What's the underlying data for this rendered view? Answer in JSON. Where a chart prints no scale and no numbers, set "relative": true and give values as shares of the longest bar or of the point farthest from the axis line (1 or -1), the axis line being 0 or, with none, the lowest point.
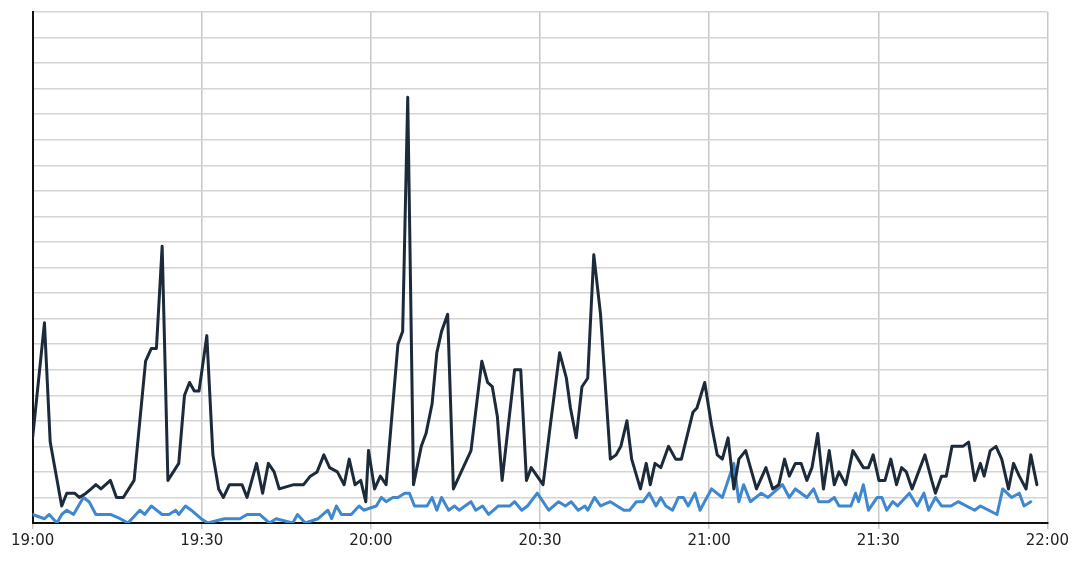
{
  "chart_data": {
    "type": "line",
    "relative": true,
    "xlim": [
      19,
      22
    ],
    "xticks": [
      {
        "value": 19,
        "label": "19:00"
      },
      {
        "value": 19.5,
        "label": "19:30"
      },
      {
        "value": 20,
        "label": "20:00"
      },
      {
        "value": 20.5,
        "label": "20:30"
      },
      {
        "value": 21,
        "label": "21:00"
      },
      {
        "value": 21.5,
        "label": "21:30"
      },
      {
        "value": 22,
        "label": "22:00"
      }
    ],
    "grid": true,
    "legend": false,
    "marker": "none",
    "line_style": "solid",
    "series": [
      {
        "color": "#1c2a3a",
        "x": [
          19.0,
          19.035,
          19.052,
          19.086,
          19.101,
          19.124,
          19.138,
          19.158,
          19.173,
          19.187,
          19.202,
          19.23,
          19.248,
          19.268,
          19.3,
          19.334,
          19.351,
          19.366,
          19.383,
          19.4,
          19.432,
          19.449,
          19.464,
          19.478,
          19.492,
          19.515,
          19.533,
          19.55,
          19.564,
          19.582,
          19.619,
          19.634,
          19.662,
          19.68,
          19.697,
          19.714,
          19.729,
          19.772,
          19.801,
          19.821,
          19.841,
          19.861,
          19.878,
          19.901,
          19.921,
          19.936,
          19.953,
          19.97,
          19.985,
          19.993,
          20.011,
          20.028,
          20.045,
          20.08,
          20.094,
          20.109,
          20.126,
          20.149,
          20.163,
          20.181,
          20.195,
          20.209,
          20.227,
          20.244,
          20.267,
          20.296,
          20.328,
          20.345,
          20.359,
          20.374,
          20.388,
          20.425,
          20.443,
          20.46,
          20.474,
          20.509,
          20.529,
          20.558,
          20.578,
          20.59,
          20.607,
          20.624,
          20.641,
          20.659,
          20.679,
          20.708,
          20.725,
          20.739,
          20.757,
          20.771,
          20.797,
          20.814,
          20.826,
          20.84,
          20.857,
          20.88,
          20.901,
          20.918,
          20.952,
          20.964,
          20.987,
          21.007,
          21.024,
          21.039,
          21.056,
          21.073,
          21.088,
          21.108,
          21.14,
          21.168,
          21.188,
          21.206,
          21.223,
          21.237,
          21.255,
          21.272,
          21.289,
          21.304,
          21.321,
          21.338,
          21.355,
          21.37,
          21.384,
          21.404,
          21.425,
          21.456,
          21.471,
          21.485,
          21.502,
          21.52,
          21.537,
          21.554,
          21.569,
          21.583,
          21.6,
          21.638,
          21.658,
          21.669,
          21.687,
          21.701,
          21.718,
          21.75,
          21.767,
          21.785,
          21.802,
          21.813,
          21.831,
          21.848,
          21.865,
          21.885,
          21.9,
          21.917,
          21.937,
          21.951,
          21.969
        ],
        "values": [
          0.2,
          0.47,
          0.19,
          0.04,
          0.07,
          0.07,
          0.06,
          0.07,
          0.08,
          0.09,
          0.08,
          0.1,
          0.06,
          0.06,
          0.1,
          0.38,
          0.41,
          0.41,
          0.65,
          0.1,
          0.14,
          0.3,
          0.33,
          0.31,
          0.31,
          0.44,
          0.16,
          0.08,
          0.06,
          0.09,
          0.09,
          0.06,
          0.14,
          0.07,
          0.14,
          0.12,
          0.08,
          0.09,
          0.09,
          0.11,
          0.12,
          0.16,
          0.13,
          0.12,
          0.09,
          0.15,
          0.09,
          0.1,
          0.05,
          0.17,
          0.08,
          0.11,
          0.09,
          0.42,
          0.45,
          1.0,
          0.09,
          0.18,
          0.21,
          0.28,
          0.4,
          0.45,
          0.49,
          0.08,
          0.12,
          0.17,
          0.38,
          0.33,
          0.32,
          0.25,
          0.1,
          0.36,
          0.36,
          0.1,
          0.13,
          0.09,
          0.22,
          0.4,
          0.34,
          0.27,
          0.2,
          0.32,
          0.34,
          0.63,
          0.49,
          0.15,
          0.16,
          0.18,
          0.24,
          0.15,
          0.08,
          0.14,
          0.09,
          0.14,
          0.13,
          0.18,
          0.15,
          0.15,
          0.26,
          0.27,
          0.33,
          0.23,
          0.16,
          0.15,
          0.2,
          0.08,
          0.15,
          0.17,
          0.08,
          0.13,
          0.08,
          0.09,
          0.15,
          0.11,
          0.14,
          0.14,
          0.1,
          0.13,
          0.21,
          0.08,
          0.17,
          0.09,
          0.12,
          0.09,
          0.17,
          0.13,
          0.13,
          0.16,
          0.1,
          0.1,
          0.15,
          0.09,
          0.13,
          0.12,
          0.08,
          0.16,
          0.1,
          0.07,
          0.11,
          0.11,
          0.18,
          0.18,
          0.19,
          0.1,
          0.14,
          0.11,
          0.17,
          0.18,
          0.15,
          0.08,
          0.14,
          0.11,
          0.08,
          0.16,
          0.09
        ]
      },
      {
        "color": "#3f88d0",
        "x": [
          19.0,
          19.035,
          19.049,
          19.072,
          19.086,
          19.101,
          19.121,
          19.15,
          19.167,
          19.187,
          19.207,
          19.23,
          19.259,
          19.282,
          19.317,
          19.331,
          19.351,
          19.383,
          19.403,
          19.423,
          19.432,
          19.452,
          19.469,
          19.498,
          19.518,
          19.567,
          19.613,
          19.634,
          19.654,
          19.671,
          19.7,
          19.72,
          19.769,
          19.783,
          19.806,
          19.844,
          19.873,
          19.884,
          19.898,
          19.913,
          19.942,
          19.965,
          19.979,
          20.016,
          20.031,
          20.045,
          20.065,
          20.08,
          20.1,
          20.114,
          20.129,
          20.152,
          20.166,
          20.181,
          20.195,
          20.209,
          20.23,
          20.247,
          20.261,
          20.296,
          20.31,
          20.33,
          20.348,
          20.377,
          20.391,
          20.411,
          20.425,
          20.446,
          20.463,
          20.492,
          20.526,
          20.555,
          20.575,
          20.592,
          20.613,
          20.633,
          20.641,
          20.661,
          20.679,
          20.708,
          20.748,
          20.765,
          20.785,
          20.805,
          20.823,
          20.843,
          20.857,
          20.872,
          20.892,
          20.909,
          20.924,
          20.938,
          20.958,
          20.973,
          21.007,
          21.039,
          21.073,
          21.088,
          21.102,
          21.122,
          21.154,
          21.174,
          21.217,
          21.237,
          21.255,
          21.289,
          21.309,
          21.324,
          21.353,
          21.37,
          21.384,
          21.419,
          21.433,
          21.442,
          21.456,
          21.471,
          21.497,
          21.511,
          21.525,
          21.543,
          21.557,
          21.592,
          21.615,
          21.635,
          21.649,
          21.669,
          21.687,
          21.715,
          21.736,
          21.785,
          21.802,
          21.851,
          21.868,
          21.894,
          21.917,
          21.931,
          21.951
        ],
        "values": [
          0.02,
          0.01,
          0.02,
          0.0,
          0.02,
          0.03,
          0.02,
          0.06,
          0.05,
          0.02,
          0.02,
          0.02,
          0.01,
          0.0,
          0.03,
          0.02,
          0.04,
          0.02,
          0.02,
          0.03,
          0.02,
          0.04,
          0.03,
          0.01,
          0.0,
          0.01,
          0.01,
          0.02,
          0.02,
          0.02,
          0.0,
          0.01,
          0.0,
          0.02,
          0.0,
          0.01,
          0.03,
          0.01,
          0.04,
          0.02,
          0.02,
          0.04,
          0.03,
          0.04,
          0.06,
          0.05,
          0.06,
          0.06,
          0.07,
          0.07,
          0.04,
          0.04,
          0.04,
          0.06,
          0.03,
          0.06,
          0.03,
          0.04,
          0.03,
          0.05,
          0.03,
          0.04,
          0.02,
          0.04,
          0.04,
          0.04,
          0.05,
          0.03,
          0.04,
          0.07,
          0.03,
          0.05,
          0.04,
          0.05,
          0.03,
          0.04,
          0.03,
          0.06,
          0.04,
          0.05,
          0.03,
          0.03,
          0.05,
          0.05,
          0.07,
          0.04,
          0.06,
          0.04,
          0.03,
          0.06,
          0.06,
          0.04,
          0.07,
          0.03,
          0.08,
          0.06,
          0.14,
          0.05,
          0.09,
          0.05,
          0.07,
          0.06,
          0.09,
          0.06,
          0.08,
          0.06,
          0.08,
          0.05,
          0.05,
          0.06,
          0.04,
          0.04,
          0.07,
          0.05,
          0.09,
          0.03,
          0.06,
          0.06,
          0.03,
          0.05,
          0.04,
          0.07,
          0.04,
          0.07,
          0.03,
          0.06,
          0.04,
          0.04,
          0.05,
          0.03,
          0.04,
          0.02,
          0.08,
          0.06,
          0.07,
          0.04,
          0.05
        ]
      }
    ]
  }
}
